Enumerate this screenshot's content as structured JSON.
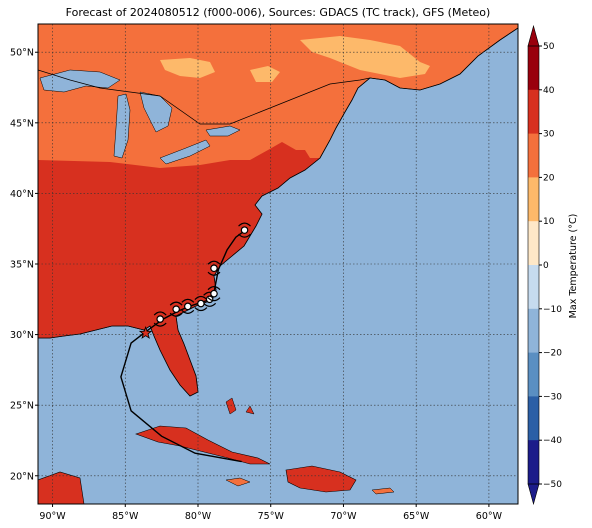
{
  "title": "Forecast of 2024080512 (f000-006), Sources: GDACS (TC track), GFS (Meteo)",
  "map": {
    "lon_range": [
      -91,
      -58
    ],
    "lat_range": [
      18,
      52
    ],
    "lon_ticks": [
      {
        "value": -90,
        "label": "90°W"
      },
      {
        "value": -85,
        "label": "85°W"
      },
      {
        "value": -80,
        "label": "80°W"
      },
      {
        "value": -75,
        "label": "75°W"
      },
      {
        "value": -70,
        "label": "70°W"
      },
      {
        "value": -65,
        "label": "65°W"
      },
      {
        "value": -60,
        "label": "60°W"
      }
    ],
    "lat_ticks": [
      {
        "value": 20,
        "label": "20°N"
      },
      {
        "value": 25,
        "label": "25°N"
      },
      {
        "value": 30,
        "label": "30°N"
      },
      {
        "value": 35,
        "label": "35°N"
      },
      {
        "value": 40,
        "label": "40°N"
      },
      {
        "value": 45,
        "label": "45°N"
      },
      {
        "value": 50,
        "label": "50°N"
      }
    ],
    "grid": true,
    "colors": {
      "ocean": "#8fb4d9",
      "hot": "#d7301f",
      "warm": "#f4703c",
      "mild": "#fdb96a",
      "track": "#000000",
      "marker_fill": "#ffffff"
    }
  },
  "colorbar": {
    "label": "Max Temperature (°C)",
    "ticks": [
      "50",
      "40",
      "30",
      "20",
      "10",
      "0",
      "−10",
      "−20",
      "−30",
      "−40",
      "−50"
    ],
    "bands": [
      "#99000d",
      "#d7301f",
      "#f4703c",
      "#fdb96a",
      "#fee8c8",
      "#f7fbff",
      "#c6dbef",
      "#8fb4d9",
      "#5a8fc2",
      "#2b5fa6",
      "#1c1c8a"
    ]
  },
  "track": {
    "points": [
      {
        "lon": -77.0,
        "lat": 21.0
      },
      {
        "lon": -80.2,
        "lat": 21.6
      },
      {
        "lon": -82.5,
        "lat": 22.8
      },
      {
        "lon": -84.6,
        "lat": 24.6
      },
      {
        "lon": -85.3,
        "lat": 27.0
      },
      {
        "lon": -84.6,
        "lat": 29.4
      },
      {
        "lon": -83.6,
        "lat": 30.2
      },
      {
        "lon": -82.4,
        "lat": 31.1
      },
      {
        "lon": -81.3,
        "lat": 31.7
      },
      {
        "lon": -80.3,
        "lat": 32.1
      },
      {
        "lon": -79.4,
        "lat": 32.4
      },
      {
        "lon": -78.9,
        "lat": 33.0
      },
      {
        "lon": -78.6,
        "lat": 34.6
      },
      {
        "lon": -78.0,
        "lat": 36.0
      },
      {
        "lon": -77.4,
        "lat": 36.9
      },
      {
        "lon": -76.6,
        "lat": 37.5
      }
    ],
    "markers": [
      {
        "lon": -82.6,
        "lat": 31.1
      },
      {
        "lon": -81.5,
        "lat": 31.8
      },
      {
        "lon": -80.7,
        "lat": 32.0
      },
      {
        "lon": -79.8,
        "lat": 32.2
      },
      {
        "lon": -79.2,
        "lat": 32.5
      },
      {
        "lon": -78.9,
        "lat": 32.9
      },
      {
        "lon": -78.9,
        "lat": 34.7
      },
      {
        "lon": -76.8,
        "lat": 37.4
      }
    ],
    "star": {
      "lon": -83.6,
      "lat": 30.1
    }
  }
}
